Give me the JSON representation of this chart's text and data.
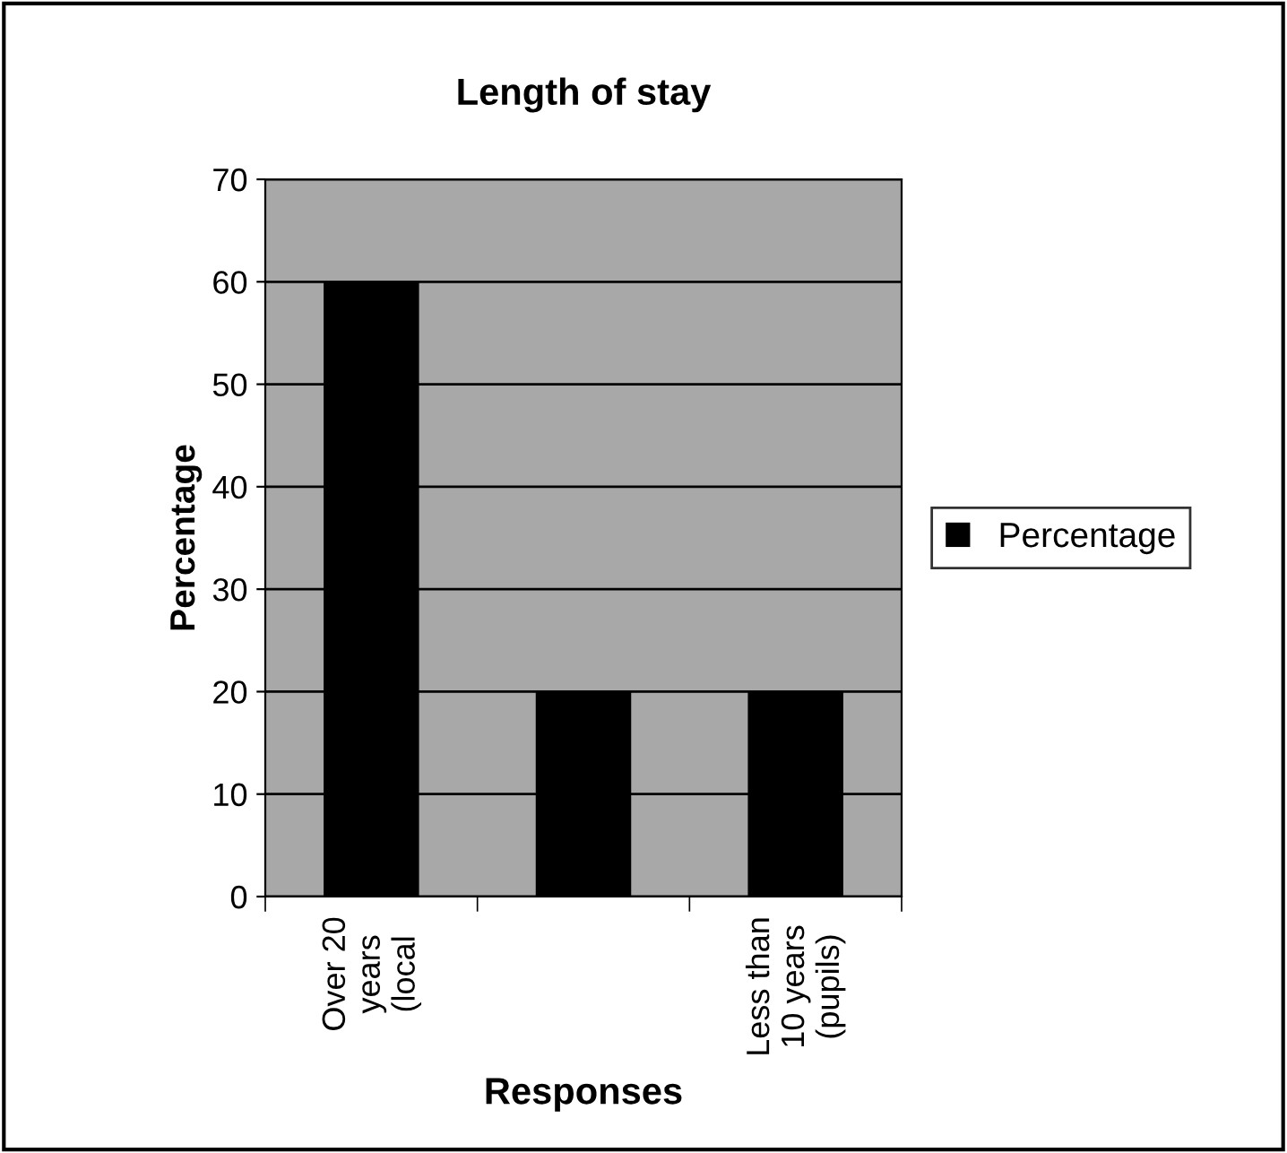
{
  "chart_data": {
    "type": "bar",
    "title": "Length of stay",
    "xlabel": "Responses",
    "ylabel": "Percentage",
    "categories": [
      "Over 20\nyears\n(local",
      null,
      "Less than\n10 years\n(pupils)"
    ],
    "series": [
      {
        "name": "Percentage",
        "color": "#000000",
        "values": [
          60,
          20,
          20
        ]
      }
    ],
    "ylim": [
      0,
      70
    ],
    "yticks": [
      0,
      10,
      20,
      30,
      40,
      50,
      60,
      70
    ],
    "grid": "y",
    "legend": "right"
  }
}
